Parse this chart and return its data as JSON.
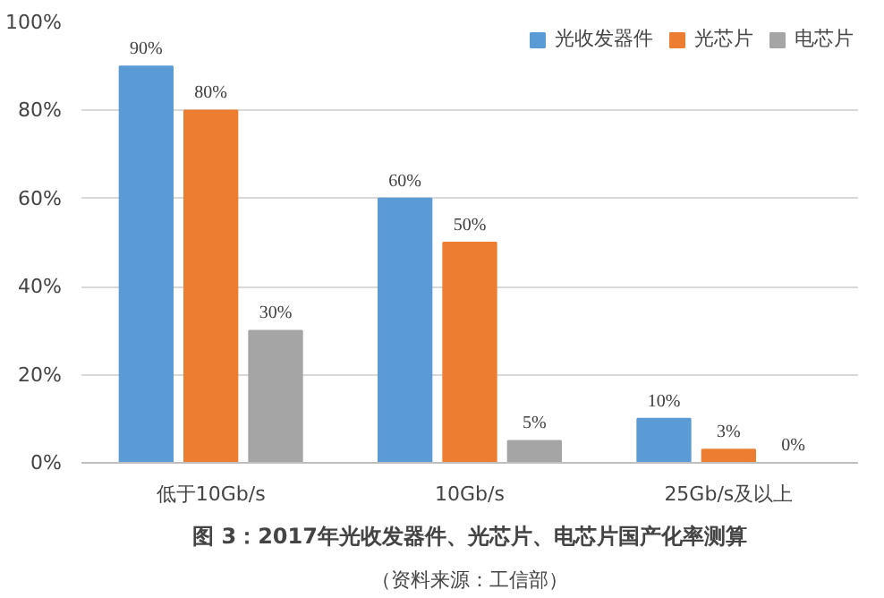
{
  "chart_data": {
    "type": "bar",
    "title": "图 3：2017年光收发器件、光芯片、电芯片国产化率测算",
    "annotations": [
      "（资料来源：工信部）"
    ],
    "categories": [
      "低于10Gb/s",
      "10Gb/s",
      "25Gb/s及以上"
    ],
    "series": [
      {
        "name": "光收发器件",
        "color": "#5b9bd5",
        "values": [
          90,
          60,
          10
        ],
        "value_labels": [
          "90%",
          "60%",
          "10%"
        ]
      },
      {
        "name": "光芯片",
        "color": "#ed7d31",
        "values": [
          80,
          50,
          3
        ],
        "value_labels": [
          "80%",
          "50%",
          "3%"
        ]
      },
      {
        "name": "电芯片",
        "color": "#a5a5a5",
        "values": [
          30,
          5,
          0
        ],
        "value_labels": [
          "30%",
          "5%",
          "0%"
        ]
      }
    ],
    "ylim": [
      0,
      100
    ],
    "yticks": [
      {
        "value": 0,
        "label": "0%"
      },
      {
        "value": 20,
        "label": "20%"
      },
      {
        "value": 40,
        "label": "40%"
      },
      {
        "value": 60,
        "label": "60%"
      },
      {
        "value": 80,
        "label": "80%"
      },
      {
        "value": 100,
        "label": "100%"
      }
    ],
    "grid": "y",
    "legend": "top right"
  }
}
